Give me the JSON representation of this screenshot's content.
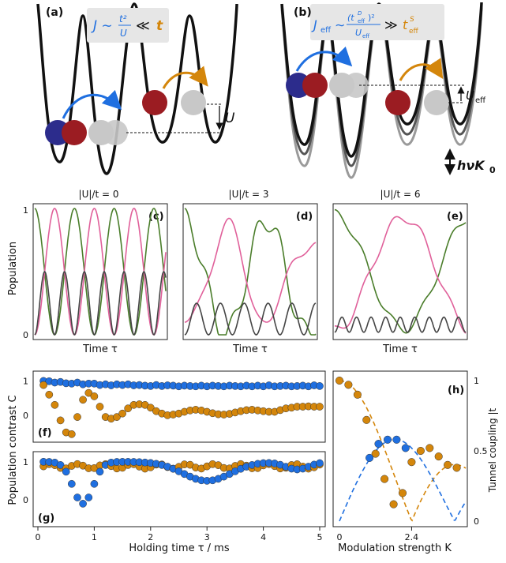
{
  "panels": {
    "a": {
      "label": "(a)",
      "formula_lhs": "J ∼",
      "formula_num": "t²",
      "formula_den": "U",
      "formula_rel": "≪",
      "formula_rhs": "t",
      "energy_label": "U"
    },
    "b": {
      "label": "(b)",
      "formula_lhs": "J",
      "formula_lhs_sub": "eff",
      "formula_sim": "∼",
      "formula_num": "(t",
      "formula_num_sub": "eff",
      "formula_num_sup": "D",
      "formula_num_close": ")²",
      "formula_den": "U",
      "formula_den_sub": "eff",
      "formula_rel": "≫",
      "formula_rhs": "t",
      "formula_rhs_sub": "eff",
      "formula_rhs_sup": "S",
      "energy_label": "U",
      "energy_label_sub": "eff",
      "drive_label": "hνK",
      "drive_label_sub": "0"
    },
    "c": {
      "label": "(c)",
      "title": "|U|/t = 0"
    },
    "d": {
      "label": "(d)",
      "title": "|U|/t = 3"
    },
    "e": {
      "label": "(e)",
      "title": "|U|/t = 6"
    },
    "f": {
      "label": "(f)"
    },
    "g": {
      "label": "(g)"
    },
    "h": {
      "label": "(h)"
    }
  },
  "row2": {
    "ylabel": "Population",
    "xlabel": "Time τ",
    "ytick_top": "1",
    "ytick_bottom": "0"
  },
  "row3": {
    "ylabel": "Population contrast C",
    "ylabel_sup": "S,D",
    "xlabel": "Holding time τ / ms",
    "xticks": [
      "0",
      "1",
      "2",
      "3",
      "4",
      "5"
    ],
    "yticks_f": [
      "1",
      "0"
    ],
    "yticks_g": [
      "1",
      "0"
    ]
  },
  "panel_h": {
    "xlabel": "Modulation strength K",
    "xlabel_sub": "0",
    "ylabel": "Tunnel coupling |t",
    "ylabel_sub": "eff",
    "ylabel_end": "| / t",
    "xticks": [
      "0",
      "2.4"
    ],
    "yticks": [
      "1",
      "0.5",
      "0"
    ]
  },
  "colors": {
    "blue": "#1f6fe0",
    "orange": "#d4860b",
    "pink": "#e0609a",
    "green": "#4a7d2a",
    "dark": "#444444",
    "navy": "#2c2c8c",
    "red": "#9b1c22",
    "gray": "#c8c8c8"
  },
  "chart_data": [
    {
      "type": "line",
      "panel": "c",
      "title": "|U|/t = 0",
      "xlabel": "Time τ",
      "ylabel": "Population",
      "ylim": [
        0,
        1
      ],
      "series": [
        {
          "color": "green",
          "shape": "cos² oscillation starting at 1"
        },
        {
          "color": "pink",
          "shape": "sin² oscillation starting at 0"
        },
        {
          "color": "dark",
          "shape": "oscillation between 0 and 0.5 at double frequency"
        }
      ]
    },
    {
      "type": "line",
      "panel": "d",
      "title": "|U|/t = 3",
      "xlabel": "Time τ",
      "ylabel": "Population",
      "ylim": [
        0,
        1
      ]
    },
    {
      "type": "line",
      "panel": "e",
      "title": "|U|/t = 6",
      "xlabel": "Time τ",
      "ylabel": "Population",
      "ylim": [
        0,
        1
      ]
    },
    {
      "type": "scatter",
      "panel": "f",
      "xlabel": "Holding time τ / ms",
      "xlim": [
        0,
        5
      ],
      "series": [
        {
          "color": "blue",
          "x": [
            0.1,
            0.2,
            0.3,
            0.4,
            0.5,
            0.6,
            0.7,
            0.8,
            0.9,
            1.0,
            1.1,
            1.2,
            1.3,
            1.4,
            1.5,
            1.6,
            1.7,
            1.8,
            1.9,
            2.0,
            2.1,
            2.2,
            2.3,
            2.4,
            2.5,
            2.6,
            2.7,
            2.8,
            2.9,
            3.0,
            3.1,
            3.2,
            3.3,
            3.4,
            3.5,
            3.6,
            3.7,
            3.8,
            3.9,
            4.0,
            4.1,
            4.2,
            4.3,
            4.4,
            4.5,
            4.6,
            4.7,
            4.8,
            4.9,
            5.0
          ],
          "y": [
            1.0,
            0.99,
            0.95,
            0.97,
            0.93,
            0.92,
            0.95,
            0.9,
            0.92,
            0.92,
            0.88,
            0.9,
            0.87,
            0.9,
            0.88,
            0.9,
            0.87,
            0.88,
            0.86,
            0.85,
            0.88,
            0.85,
            0.87,
            0.86,
            0.84,
            0.86,
            0.85,
            0.84,
            0.86,
            0.84,
            0.86,
            0.85,
            0.84,
            0.86,
            0.85,
            0.84,
            0.86,
            0.84,
            0.86,
            0.84,
            0.87,
            0.84,
            0.85,
            0.86,
            0.84,
            0.85,
            0.86,
            0.84,
            0.87,
            0.85
          ]
        },
        {
          "color": "orange",
          "x": [
            0.1,
            0.2,
            0.3,
            0.4,
            0.5,
            0.6,
            0.7,
            0.8,
            0.9,
            1.0,
            1.1,
            1.2,
            1.3,
            1.4,
            1.5,
            1.6,
            1.7,
            1.8,
            1.9,
            2.0,
            2.1,
            2.2,
            2.3,
            2.4,
            2.5,
            2.6,
            2.7,
            2.8,
            2.9,
            3.0,
            3.1,
            3.2,
            3.3,
            3.4,
            3.5,
            3.6,
            3.7,
            3.8,
            3.9,
            4.0,
            4.1,
            4.2,
            4.3,
            4.4,
            4.5,
            4.6,
            4.7,
            4.8,
            4.9,
            5.0
          ],
          "y": [
            0.88,
            0.6,
            0.3,
            -0.15,
            -0.5,
            -0.55,
            -0.05,
            0.45,
            0.65,
            0.55,
            0.25,
            -0.05,
            -0.1,
            -0.05,
            0.05,
            0.2,
            0.3,
            0.32,
            0.3,
            0.22,
            0.12,
            0.05,
            0.0,
            0.02,
            0.05,
            0.1,
            0.14,
            0.16,
            0.14,
            0.1,
            0.06,
            0.03,
            0.02,
            0.04,
            0.08,
            0.12,
            0.15,
            0.16,
            0.14,
            0.12,
            0.1,
            0.1,
            0.15,
            0.2,
            0.22,
            0.25,
            0.25,
            0.26,
            0.25,
            0.25
          ]
        }
      ]
    },
    {
      "type": "scatter",
      "panel": "g",
      "xlabel": "Holding time τ / ms",
      "xlim": [
        0,
        5
      ]
    },
    {
      "type": "scatter",
      "panel": "h",
      "xlabel": "Modulation strength K0",
      "ylabel": "Tunnel coupling |t_eff| / t",
      "xticks": [
        "0",
        "2.4"
      ],
      "ylim": [
        0,
        1
      ]
    }
  ]
}
